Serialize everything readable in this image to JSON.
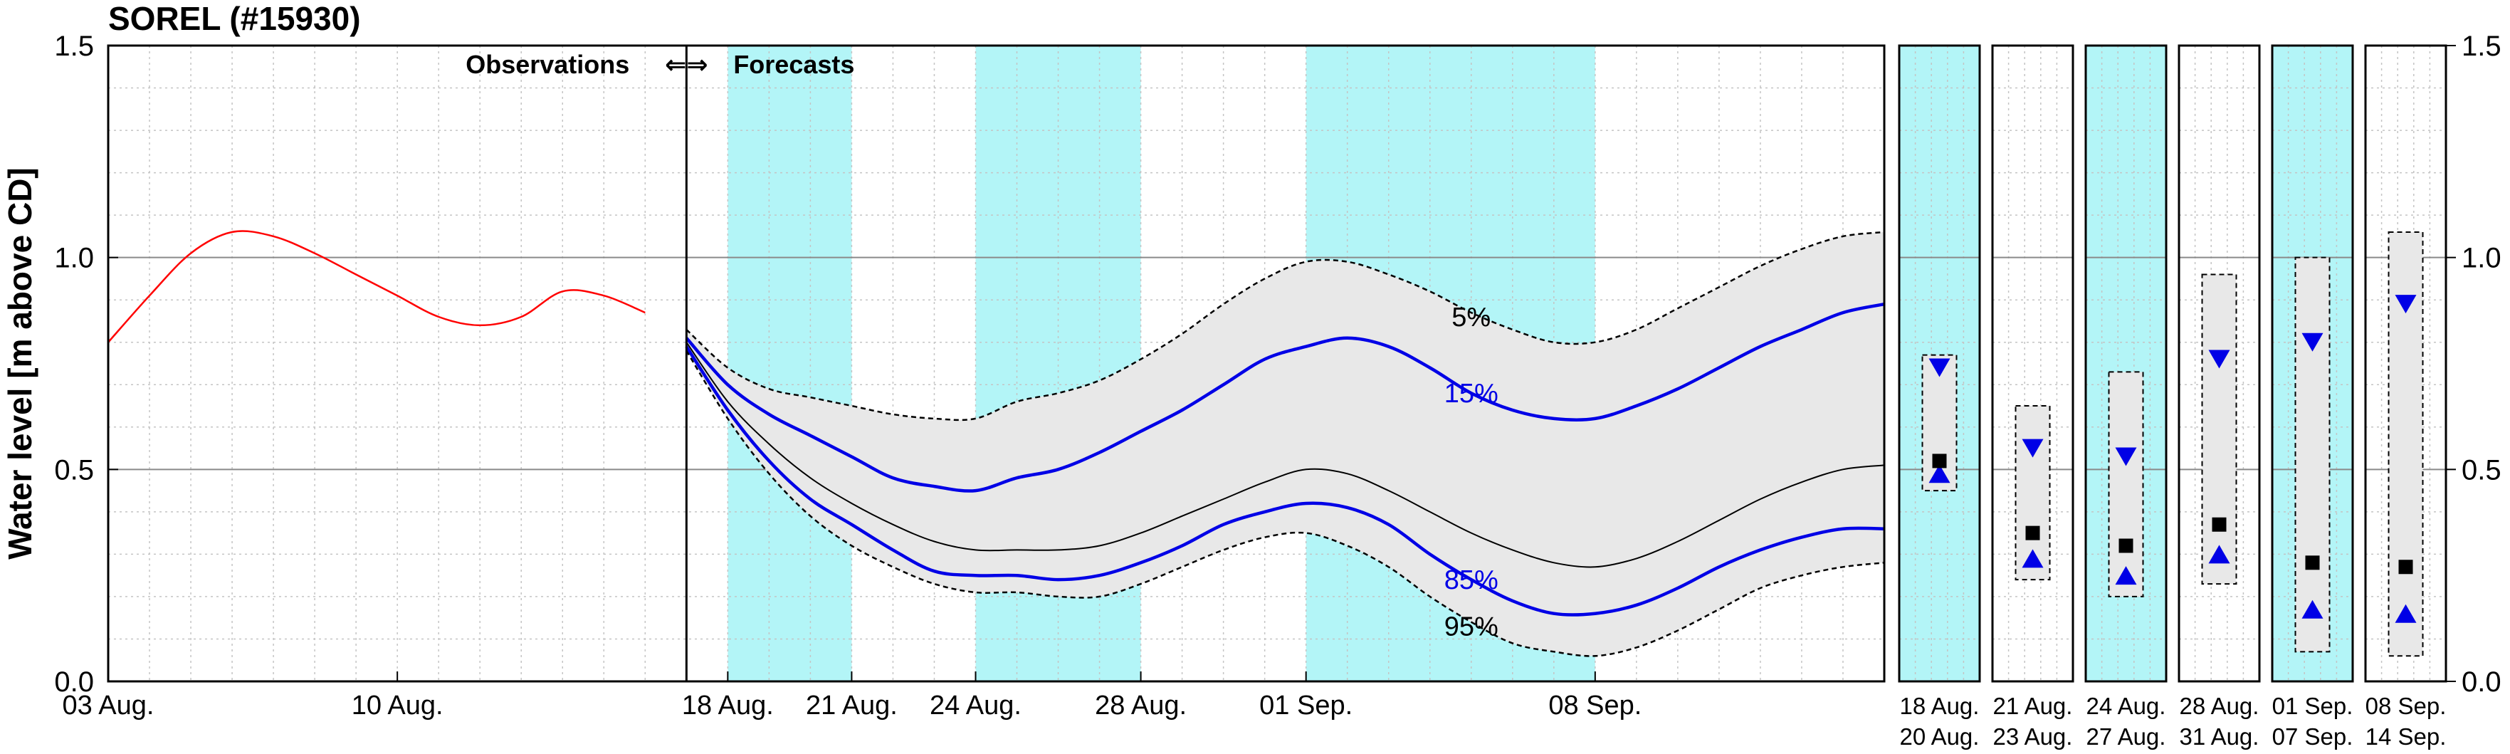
{
  "chart_data": {
    "type": "line",
    "title": "SOREL (#15930)",
    "ylabel": "Water level [m above CD]",
    "ylim": [
      0,
      1.5
    ],
    "yticks": [
      "0.0",
      "0.5",
      "1.0",
      "1.5"
    ],
    "grid": true,
    "xlim": [
      "2025-08-03",
      "2025-09-15"
    ],
    "xticks": [
      {
        "x": "2025-08-03",
        "label": "03 Aug."
      },
      {
        "x": "2025-08-10",
        "label": "10 Aug."
      },
      {
        "x": "2025-08-18",
        "label": "18 Aug."
      },
      {
        "x": "2025-08-21",
        "label": "21 Aug."
      },
      {
        "x": "2025-08-24",
        "label": "24 Aug."
      },
      {
        "x": "2025-08-28",
        "label": "28 Aug."
      },
      {
        "x": "2025-09-01",
        "label": "01 Sep."
      },
      {
        "x": "2025-09-08",
        "label": "08 Sep."
      }
    ],
    "divider": {
      "x": "2025-08-17",
      "left_label": "Observations",
      "arrows": "⇐⇒",
      "right_label": "Forecasts"
    },
    "shaded_periods": [
      [
        "2025-08-18",
        "2025-08-21"
      ],
      [
        "2025-08-24",
        "2025-08-28"
      ],
      [
        "2025-09-01",
        "2025-09-08"
      ]
    ],
    "colors": {
      "observed": "#ff0000",
      "forecast": "#0000e6",
      "median": "#000000",
      "shade": "#b3f5f7",
      "band": "#e8e8e8"
    },
    "x_dates": [
      "2025-08-03",
      "2025-08-04",
      "2025-08-05",
      "2025-08-06",
      "2025-08-07",
      "2025-08-08",
      "2025-08-09",
      "2025-08-10",
      "2025-08-11",
      "2025-08-12",
      "2025-08-13",
      "2025-08-14",
      "2025-08-15",
      "2025-08-16",
      "2025-08-17",
      "2025-08-18",
      "2025-08-19",
      "2025-08-20",
      "2025-08-21",
      "2025-08-22",
      "2025-08-23",
      "2025-08-24",
      "2025-08-25",
      "2025-08-26",
      "2025-08-27",
      "2025-08-28",
      "2025-08-29",
      "2025-08-30",
      "2025-08-31",
      "2025-09-01",
      "2025-09-02",
      "2025-09-03",
      "2025-09-04",
      "2025-09-05",
      "2025-09-06",
      "2025-09-07",
      "2025-09-08",
      "2025-09-09",
      "2025-09-10",
      "2025-09-11",
      "2025-09-12",
      "2025-09-13",
      "2025-09-14",
      "2025-09-15"
    ],
    "series": [
      {
        "name": "observed",
        "style": "observed",
        "x": [
          "2025-08-03",
          "2025-08-04",
          "2025-08-05",
          "2025-08-06",
          "2025-08-07",
          "2025-08-08",
          "2025-08-09",
          "2025-08-10",
          "2025-08-11",
          "2025-08-12",
          "2025-08-13",
          "2025-08-14",
          "2025-08-15",
          "2025-08-16"
        ],
        "y": [
          0.8,
          0.91,
          1.01,
          1.06,
          1.05,
          1.01,
          0.96,
          0.91,
          0.86,
          0.84,
          0.86,
          0.92,
          0.91,
          0.87
        ]
      },
      {
        "name": "5%",
        "style": "dashed",
        "x": [
          "2025-08-17",
          "2025-08-18",
          "2025-08-19",
          "2025-08-20",
          "2025-08-21",
          "2025-08-22",
          "2025-08-23",
          "2025-08-24",
          "2025-08-25",
          "2025-08-26",
          "2025-08-27",
          "2025-08-28",
          "2025-08-29",
          "2025-08-30",
          "2025-08-31",
          "2025-09-01",
          "2025-09-02",
          "2025-09-03",
          "2025-09-04",
          "2025-09-05",
          "2025-09-06",
          "2025-09-07",
          "2025-09-08",
          "2025-09-09",
          "2025-09-10",
          "2025-09-11",
          "2025-09-12",
          "2025-09-13",
          "2025-09-14",
          "2025-09-15"
        ],
        "y": [
          0.83,
          0.74,
          0.69,
          0.67,
          0.65,
          0.63,
          0.62,
          0.62,
          0.66,
          0.68,
          0.71,
          0.76,
          0.82,
          0.89,
          0.95,
          0.99,
          0.99,
          0.96,
          0.92,
          0.87,
          0.83,
          0.8,
          0.8,
          0.83,
          0.88,
          0.93,
          0.98,
          1.02,
          1.05,
          1.06
        ]
      },
      {
        "name": "15%",
        "style": "forecast",
        "x": [
          "2025-08-17",
          "2025-08-18",
          "2025-08-19",
          "2025-08-20",
          "2025-08-21",
          "2025-08-22",
          "2025-08-23",
          "2025-08-24",
          "2025-08-25",
          "2025-08-26",
          "2025-08-27",
          "2025-08-28",
          "2025-08-29",
          "2025-08-30",
          "2025-08-31",
          "2025-09-01",
          "2025-09-02",
          "2025-09-03",
          "2025-09-04",
          "2025-09-05",
          "2025-09-06",
          "2025-09-07",
          "2025-09-08",
          "2025-09-09",
          "2025-09-10",
          "2025-09-11",
          "2025-09-12",
          "2025-09-13",
          "2025-09-14",
          "2025-09-15"
        ],
        "y": [
          0.81,
          0.7,
          0.63,
          0.58,
          0.53,
          0.48,
          0.46,
          0.45,
          0.48,
          0.5,
          0.54,
          0.59,
          0.64,
          0.7,
          0.76,
          0.79,
          0.81,
          0.79,
          0.74,
          0.68,
          0.64,
          0.62,
          0.62,
          0.65,
          0.69,
          0.74,
          0.79,
          0.83,
          0.87,
          0.89
        ]
      },
      {
        "name": "median",
        "style": "median",
        "x": [
          "2025-08-17",
          "2025-08-18",
          "2025-08-19",
          "2025-08-20",
          "2025-08-21",
          "2025-08-22",
          "2025-08-23",
          "2025-08-24",
          "2025-08-25",
          "2025-08-26",
          "2025-08-27",
          "2025-08-28",
          "2025-08-29",
          "2025-08-30",
          "2025-08-31",
          "2025-09-01",
          "2025-09-02",
          "2025-09-03",
          "2025-09-04",
          "2025-09-05",
          "2025-09-06",
          "2025-09-07",
          "2025-09-08",
          "2025-09-09",
          "2025-09-10",
          "2025-09-11",
          "2025-09-12",
          "2025-09-13",
          "2025-09-14",
          "2025-09-15"
        ],
        "y": [
          0.8,
          0.66,
          0.56,
          0.48,
          0.42,
          0.37,
          0.33,
          0.31,
          0.31,
          0.31,
          0.32,
          0.35,
          0.39,
          0.43,
          0.47,
          0.5,
          0.49,
          0.45,
          0.4,
          0.35,
          0.31,
          0.28,
          0.27,
          0.29,
          0.33,
          0.38,
          0.43,
          0.47,
          0.5,
          0.51
        ]
      },
      {
        "name": "85%",
        "style": "forecast",
        "x": [
          "2025-08-17",
          "2025-08-18",
          "2025-08-19",
          "2025-08-20",
          "2025-08-21",
          "2025-08-22",
          "2025-08-23",
          "2025-08-24",
          "2025-08-25",
          "2025-08-26",
          "2025-08-27",
          "2025-08-28",
          "2025-08-29",
          "2025-08-30",
          "2025-08-31",
          "2025-09-01",
          "2025-09-02",
          "2025-09-03",
          "2025-09-04",
          "2025-09-05",
          "2025-09-06",
          "2025-09-07",
          "2025-09-08",
          "2025-09-09",
          "2025-09-10",
          "2025-09-11",
          "2025-09-12",
          "2025-09-13",
          "2025-09-14",
          "2025-09-15"
        ],
        "y": [
          0.79,
          0.64,
          0.52,
          0.43,
          0.37,
          0.31,
          0.26,
          0.25,
          0.25,
          0.24,
          0.25,
          0.28,
          0.32,
          0.37,
          0.4,
          0.42,
          0.41,
          0.37,
          0.3,
          0.24,
          0.19,
          0.16,
          0.16,
          0.18,
          0.22,
          0.27,
          0.31,
          0.34,
          0.36,
          0.36
        ]
      },
      {
        "name": "95%",
        "style": "dashed",
        "x": [
          "2025-08-17",
          "2025-08-18",
          "2025-08-19",
          "2025-08-20",
          "2025-08-21",
          "2025-08-22",
          "2025-08-23",
          "2025-08-24",
          "2025-08-25",
          "2025-08-26",
          "2025-08-27",
          "2025-08-28",
          "2025-08-29",
          "2025-08-30",
          "2025-08-31",
          "2025-09-01",
          "2025-09-02",
          "2025-09-03",
          "2025-09-04",
          "2025-09-05",
          "2025-09-06",
          "2025-09-07",
          "2025-09-08",
          "2025-09-09",
          "2025-09-10",
          "2025-09-11",
          "2025-09-12",
          "2025-09-13",
          "2025-09-14",
          "2025-09-15"
        ],
        "y": [
          0.78,
          0.62,
          0.49,
          0.39,
          0.32,
          0.27,
          0.23,
          0.21,
          0.21,
          0.2,
          0.2,
          0.23,
          0.27,
          0.31,
          0.34,
          0.35,
          0.32,
          0.27,
          0.2,
          0.14,
          0.09,
          0.07,
          0.06,
          0.08,
          0.12,
          0.17,
          0.22,
          0.25,
          0.27,
          0.28
        ]
      }
    ],
    "band": {
      "lower": "95%",
      "upper": "5%"
    },
    "curve_labels": [
      {
        "series": "5%",
        "x": "2025-09-05",
        "y": 0.86,
        "text": "5%",
        "color": "#000000"
      },
      {
        "series": "15%",
        "x": "2025-09-05",
        "y": 0.68,
        "text": "15%",
        "color": "#0000e6"
      },
      {
        "series": "85%",
        "x": "2025-09-05",
        "y": 0.24,
        "text": "85%",
        "color": "#0000e6"
      },
      {
        "series": "95%",
        "x": "2025-09-05",
        "y": 0.13,
        "text": "95%",
        "color": "#000000"
      }
    ],
    "summary_panels": [
      {
        "label_top": "18  Aug.",
        "label_bottom": "20  Aug.",
        "shaded": true,
        "lo": 0.45,
        "hi": 0.77,
        "mid": 0.52,
        "down_tri": 0.74,
        "up_tri": 0.49
      },
      {
        "label_top": "21  Aug.",
        "label_bottom": "23  Aug.",
        "shaded": false,
        "lo": 0.24,
        "hi": 0.65,
        "mid": 0.35,
        "down_tri": 0.55,
        "up_tri": 0.29
      },
      {
        "label_top": "24  Aug.",
        "label_bottom": "27  Aug.",
        "shaded": true,
        "lo": 0.2,
        "hi": 0.73,
        "mid": 0.32,
        "down_tri": 0.53,
        "up_tri": 0.25
      },
      {
        "label_top": "28  Aug.",
        "label_bottom": "31  Aug.",
        "shaded": false,
        "lo": 0.23,
        "hi": 0.96,
        "mid": 0.37,
        "down_tri": 0.76,
        "up_tri": 0.3
      },
      {
        "label_top": "01  Sep.",
        "label_bottom": "07  Sep.",
        "shaded": true,
        "lo": 0.07,
        "hi": 1.0,
        "mid": 0.28,
        "down_tri": 0.8,
        "up_tri": 0.17
      },
      {
        "label_top": "08  Sep.",
        "label_bottom": "14  Sep.",
        "shaded": false,
        "lo": 0.06,
        "hi": 1.06,
        "mid": 0.27,
        "down_tri": 0.89,
        "up_tri": 0.16
      }
    ],
    "right_yticks": [
      "0.0",
      "0.5",
      "1.0",
      "1.5"
    ]
  }
}
